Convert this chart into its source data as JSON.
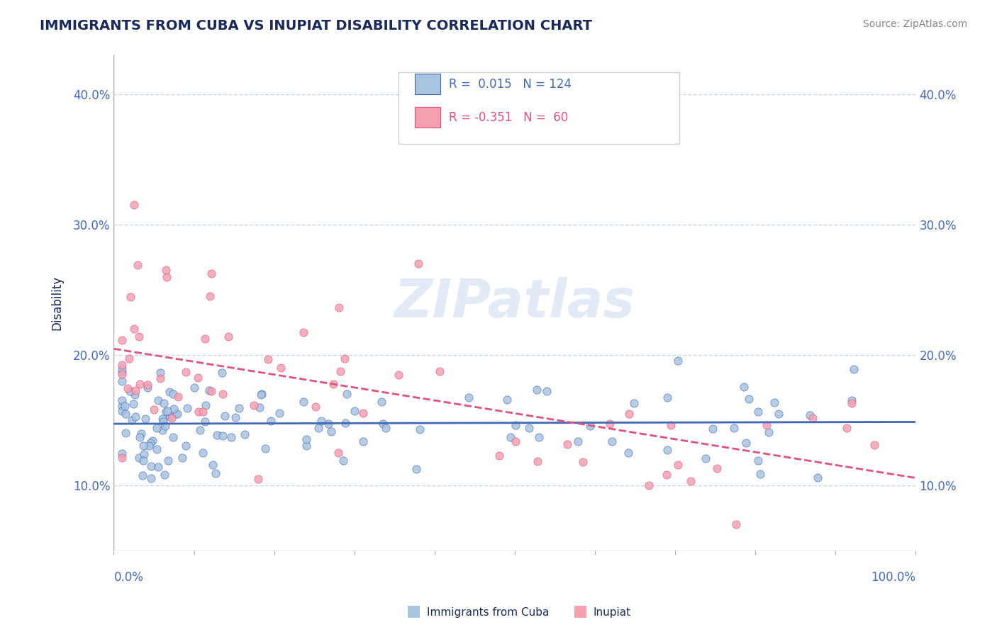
{
  "title": "IMMIGRANTS FROM CUBA VS INUPIAT DISABILITY CORRELATION CHART",
  "source_text": "Source: ZipAtlas.com",
  "ylabel": "Disability",
  "ytick_labels": [
    "10.0%",
    "20.0%",
    "30.0%",
    "40.0%"
  ],
  "ytick_values": [
    0.1,
    0.2,
    0.3,
    0.4
  ],
  "xlim": [
    0.0,
    1.0
  ],
  "ylim": [
    0.05,
    0.43
  ],
  "r_cuba": 0.015,
  "n_cuba": 124,
  "r_inupiat": -0.351,
  "n_inupiat": 60,
  "color_cuba": "#a8c4e0",
  "color_inupiat": "#f4a0b0",
  "line_color_cuba": "#4169b8",
  "line_color_inupiat": "#e05080",
  "legend_text_color": "#4169b8",
  "legend_text_color2": "#e05080",
  "watermark": "ZIPatlas",
  "background_color": "#ffffff",
  "grid_color": "#c8d8e8",
  "title_color": "#1a2a5a",
  "axis_label_color": "#4169b8"
}
